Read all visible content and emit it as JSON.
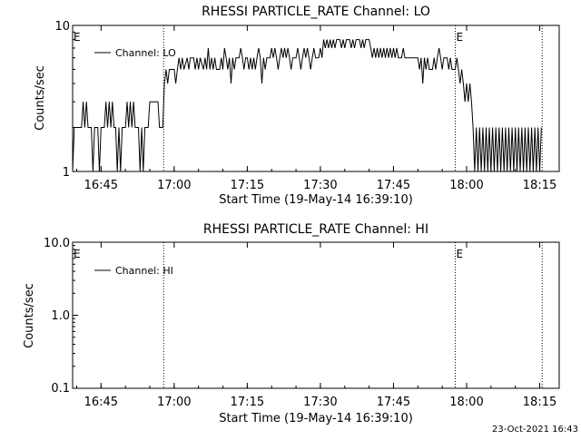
{
  "chart_data": [
    {
      "type": "line",
      "title": "RHESSI PARTICLE_RATE Channel: LO",
      "xlabel": "Start Time (19-May-14 16:39:10)",
      "ylabel": "Counts/sec",
      "y_scale": "log",
      "ylim": [
        1,
        10
      ],
      "ytick_labels": [
        "1",
        "10"
      ],
      "xlim": [
        "16:39:10",
        "18:19:00"
      ],
      "xtick_labels": [
        "16:45",
        "17:00",
        "17:15",
        "17:30",
        "17:45",
        "18:00",
        "18:15"
      ],
      "legend": {
        "position": "top-left",
        "entries": [
          "Channel: LO"
        ]
      },
      "markers": [
        {
          "label": "E",
          "time": "16:39:10"
        },
        {
          "label": "",
          "time": "16:57:50"
        },
        {
          "label": "E",
          "time": "17:57:40"
        },
        {
          "label": "",
          "time": "18:15:30"
        }
      ],
      "series": [
        {
          "name": "Channel: LO",
          "points": [
            [
              "16:39:10",
              1
            ],
            [
              "16:39:30",
              2
            ],
            [
              "16:41:00",
              2
            ],
            [
              "16:41:20",
              3
            ],
            [
              "16:41:40",
              2
            ],
            [
              "16:42:00",
              3
            ],
            [
              "16:42:20",
              2
            ],
            [
              "16:43:00",
              2
            ],
            [
              "16:43:20",
              1
            ],
            [
              "16:43:40",
              2
            ],
            [
              "16:44:20",
              2
            ],
            [
              "16:44:40",
              1
            ],
            [
              "16:45:00",
              2
            ],
            [
              "16:45:40",
              2
            ],
            [
              "16:46:00",
              3
            ],
            [
              "16:46:20",
              2
            ],
            [
              "16:46:40",
              3
            ],
            [
              "16:47:00",
              2
            ],
            [
              "16:47:20",
              3
            ],
            [
              "16:47:40",
              2
            ],
            [
              "16:48:00",
              2
            ],
            [
              "16:48:20",
              1
            ],
            [
              "16:48:40",
              2
            ],
            [
              "16:49:00",
              1
            ],
            [
              "16:49:20",
              2
            ],
            [
              "16:50:00",
              2
            ],
            [
              "16:50:20",
              3
            ],
            [
              "16:50:40",
              2
            ],
            [
              "16:51:00",
              3
            ],
            [
              "16:51:20",
              2
            ],
            [
              "16:51:40",
              3
            ],
            [
              "16:52:00",
              2
            ],
            [
              "16:52:40",
              2
            ],
            [
              "16:53:00",
              1
            ],
            [
              "16:53:20",
              2
            ],
            [
              "16:53:40",
              1
            ],
            [
              "16:54:00",
              2
            ],
            [
              "16:54:40",
              2
            ],
            [
              "16:55:00",
              3
            ],
            [
              "16:56:40",
              3
            ],
            [
              "16:57:00",
              2
            ],
            [
              "16:57:40",
              2
            ],
            [
              "16:58:00",
              4
            ],
            [
              "16:58:20",
              5
            ],
            [
              "16:58:40",
              4
            ],
            [
              "16:59:00",
              5
            ],
            [
              "17:00:00",
              5
            ],
            [
              "17:00:20",
              4
            ],
            [
              "17:00:40",
              5
            ],
            [
              "17:01:00",
              6
            ],
            [
              "17:01:20",
              5
            ],
            [
              "17:01:40",
              6
            ],
            [
              "17:02:00",
              5
            ],
            [
              "17:02:40",
              6
            ],
            [
              "17:03:00",
              5
            ],
            [
              "17:03:20",
              6
            ],
            [
              "17:04:00",
              6
            ],
            [
              "17:04:20",
              5
            ],
            [
              "17:04:40",
              6
            ],
            [
              "17:05:00",
              5
            ],
            [
              "17:05:20",
              6
            ],
            [
              "17:06:00",
              5
            ],
            [
              "17:06:20",
              6
            ],
            [
              "17:06:40",
              5
            ],
            [
              "17:07:00",
              7
            ],
            [
              "17:07:20",
              5
            ],
            [
              "17:07:40",
              6
            ],
            [
              "17:08:00",
              5
            ],
            [
              "17:08:20",
              6
            ],
            [
              "17:08:40",
              5
            ],
            [
              "17:09:20",
              5
            ],
            [
              "17:09:40",
              6
            ],
            [
              "17:10:00",
              5
            ],
            [
              "17:10:20",
              7
            ],
            [
              "17:10:40",
              6
            ],
            [
              "17:11:00",
              5
            ],
            [
              "17:11:20",
              6
            ],
            [
              "17:11:40",
              4
            ],
            [
              "17:12:00",
              6
            ],
            [
              "17:12:20",
              5
            ],
            [
              "17:12:40",
              6
            ],
            [
              "17:13:20",
              6
            ],
            [
              "17:13:40",
              7
            ],
            [
              "17:14:00",
              6
            ],
            [
              "17:14:20",
              5
            ],
            [
              "17:14:40",
              6
            ],
            [
              "17:15:00",
              6
            ],
            [
              "17:15:20",
              5
            ],
            [
              "17:15:40",
              6
            ],
            [
              "17:16:00",
              5
            ],
            [
              "17:16:20",
              6
            ],
            [
              "17:16:40",
              5
            ],
            [
              "17:17:00",
              6
            ],
            [
              "17:17:20",
              7
            ],
            [
              "17:17:40",
              6
            ],
            [
              "17:18:00",
              4
            ],
            [
              "17:18:20",
              6
            ],
            [
              "17:18:40",
              5
            ],
            [
              "17:19:00",
              6
            ],
            [
              "17:19:40",
              6
            ],
            [
              "17:20:00",
              7
            ],
            [
              "17:20:20",
              6
            ],
            [
              "17:20:40",
              7
            ],
            [
              "17:21:00",
              6
            ],
            [
              "17:21:20",
              5
            ],
            [
              "17:21:40",
              6
            ],
            [
              "17:22:00",
              7
            ],
            [
              "17:22:20",
              6
            ],
            [
              "17:22:40",
              7
            ],
            [
              "17:23:00",
              6
            ],
            [
              "17:23:20",
              7
            ],
            [
              "17:23:40",
              6
            ],
            [
              "17:24:00",
              5
            ],
            [
              "17:24:20",
              6
            ],
            [
              "17:25:00",
              6
            ],
            [
              "17:25:20",
              7
            ],
            [
              "17:25:40",
              6
            ],
            [
              "17:26:00",
              5
            ],
            [
              "17:26:20",
              6
            ],
            [
              "17:26:40",
              7
            ],
            [
              "17:27:00",
              6
            ],
            [
              "17:27:20",
              7
            ],
            [
              "17:27:40",
              6
            ],
            [
              "17:28:00",
              5
            ],
            [
              "17:28:20",
              6
            ],
            [
              "17:28:40",
              7
            ],
            [
              "17:29:00",
              6
            ],
            [
              "17:29:40",
              6
            ],
            [
              "17:30:00",
              7
            ],
            [
              "17:30:20",
              6
            ],
            [
              "17:30:40",
              8
            ],
            [
              "17:31:00",
              7
            ],
            [
              "17:31:20",
              8
            ],
            [
              "17:31:40",
              7
            ],
            [
              "17:32:00",
              8
            ],
            [
              "17:32:20",
              7
            ],
            [
              "17:32:40",
              8
            ],
            [
              "17:33:00",
              7
            ],
            [
              "17:33:20",
              8
            ],
            [
              "17:34:00",
              8
            ],
            [
              "17:34:20",
              7
            ],
            [
              "17:34:40",
              8
            ],
            [
              "17:35:00",
              7
            ],
            [
              "17:35:20",
              8
            ],
            [
              "17:36:00",
              8
            ],
            [
              "17:36:20",
              7
            ],
            [
              "17:36:40",
              8
            ],
            [
              "17:37:00",
              7
            ],
            [
              "17:37:20",
              8
            ],
            [
              "17:38:00",
              8
            ],
            [
              "17:38:20",
              7
            ],
            [
              "17:38:40",
              8
            ],
            [
              "17:39:00",
              7
            ],
            [
              "17:39:20",
              8
            ],
            [
              "17:40:00",
              8
            ],
            [
              "17:40:20",
              7
            ],
            [
              "17:40:40",
              6
            ],
            [
              "17:41:00",
              7
            ],
            [
              "17:41:20",
              6
            ],
            [
              "17:41:40",
              7
            ],
            [
              "17:42:00",
              6
            ],
            [
              "17:42:20",
              7
            ],
            [
              "17:42:40",
              6
            ],
            [
              "17:43:00",
              7
            ],
            [
              "17:43:20",
              6
            ],
            [
              "17:43:40",
              7
            ],
            [
              "17:44:00",
              6
            ],
            [
              "17:44:20",
              7
            ],
            [
              "17:44:40",
              6
            ],
            [
              "17:45:00",
              7
            ],
            [
              "17:45:20",
              6
            ],
            [
              "17:45:40",
              7
            ],
            [
              "17:46:00",
              6
            ],
            [
              "17:46:40",
              6
            ],
            [
              "17:47:00",
              7
            ],
            [
              "17:47:20",
              6
            ],
            [
              "17:50:00",
              6
            ],
            [
              "17:50:20",
              5
            ],
            [
              "17:50:40",
              6
            ],
            [
              "17:51:00",
              4
            ],
            [
              "17:51:20",
              6
            ],
            [
              "17:51:40",
              5
            ],
            [
              "17:52:00",
              6
            ],
            [
              "17:52:20",
              5
            ],
            [
              "17:53:00",
              5
            ],
            [
              "17:53:20",
              6
            ],
            [
              "17:53:40",
              5
            ],
            [
              "17:54:00",
              6
            ],
            [
              "17:54:20",
              7
            ],
            [
              "17:54:40",
              6
            ],
            [
              "17:55:00",
              5
            ],
            [
              "17:55:20",
              6
            ],
            [
              "17:56:00",
              6
            ],
            [
              "17:56:20",
              5
            ],
            [
              "17:56:40",
              6
            ],
            [
              "17:57:00",
              5
            ],
            [
              "17:57:40",
              5
            ],
            [
              "17:58:00",
              6
            ],
            [
              "17:58:20",
              5
            ],
            [
              "17:58:40",
              4
            ],
            [
              "17:59:00",
              5
            ],
            [
              "17:59:20",
              4
            ],
            [
              "17:59:40",
              3
            ],
            [
              "18:00:00",
              4
            ],
            [
              "18:00:20",
              3
            ],
            [
              "18:00:40",
              4
            ],
            [
              "18:01:00",
              3
            ],
            [
              "18:01:20",
              2
            ],
            [
              "18:01:40",
              1
            ],
            [
              "18:02:00",
              2
            ],
            [
              "18:02:20",
              1
            ],
            [
              "18:02:40",
              2
            ],
            [
              "18:03:00",
              1
            ],
            [
              "18:03:20",
              2
            ],
            [
              "18:03:40",
              1
            ],
            [
              "18:04:00",
              2
            ],
            [
              "18:04:20",
              1
            ],
            [
              "18:04:40",
              2
            ],
            [
              "18:05:00",
              1
            ],
            [
              "18:05:20",
              2
            ],
            [
              "18:05:40",
              1
            ],
            [
              "18:06:00",
              2
            ],
            [
              "18:06:20",
              1
            ],
            [
              "18:06:40",
              2
            ],
            [
              "18:07:00",
              1
            ],
            [
              "18:07:20",
              2
            ],
            [
              "18:07:40",
              1
            ],
            [
              "18:08:00",
              2
            ],
            [
              "18:08:20",
              1
            ],
            [
              "18:08:40",
              2
            ],
            [
              "18:09:00",
              1
            ],
            [
              "18:09:20",
              2
            ],
            [
              "18:09:40",
              1
            ],
            [
              "18:10:00",
              2
            ],
            [
              "18:10:20",
              1
            ],
            [
              "18:10:40",
              2
            ],
            [
              "18:11:00",
              1
            ],
            [
              "18:11:20",
              2
            ],
            [
              "18:11:40",
              1
            ],
            [
              "18:12:00",
              2
            ],
            [
              "18:12:20",
              1
            ],
            [
              "18:12:40",
              2
            ],
            [
              "18:13:00",
              1
            ],
            [
              "18:13:20",
              2
            ],
            [
              "18:13:40",
              1
            ],
            [
              "18:14:00",
              2
            ],
            [
              "18:14:20",
              1
            ],
            [
              "18:14:40",
              2
            ],
            [
              "18:15:00",
              1
            ],
            [
              "18:15:20",
              2
            ]
          ]
        }
      ]
    },
    {
      "type": "line",
      "title": "RHESSI PARTICLE_RATE Channel: HI",
      "xlabel": "Start Time (19-May-14 16:39:10)",
      "ylabel": "Counts/sec",
      "y_scale": "log",
      "ylim": [
        0.1,
        10
      ],
      "ytick_labels": [
        "0.1",
        "1.0",
        "10.0"
      ],
      "xlim": [
        "16:39:10",
        "18:19:00"
      ],
      "xtick_labels": [
        "16:45",
        "17:00",
        "17:15",
        "17:30",
        "17:45",
        "18:00",
        "18:15"
      ],
      "legend": {
        "position": "top-left",
        "entries": [
          "Channel: HI"
        ]
      },
      "markers": [
        {
          "label": "E",
          "time": "16:39:10"
        },
        {
          "label": "",
          "time": "16:57:50"
        },
        {
          "label": "E",
          "time": "17:57:40"
        },
        {
          "label": "",
          "time": "18:15:30"
        }
      ],
      "series": [
        {
          "name": "Channel: HI",
          "points": []
        }
      ]
    }
  ],
  "footer": {
    "timestamp": "23-Oct-2021 16:43"
  }
}
